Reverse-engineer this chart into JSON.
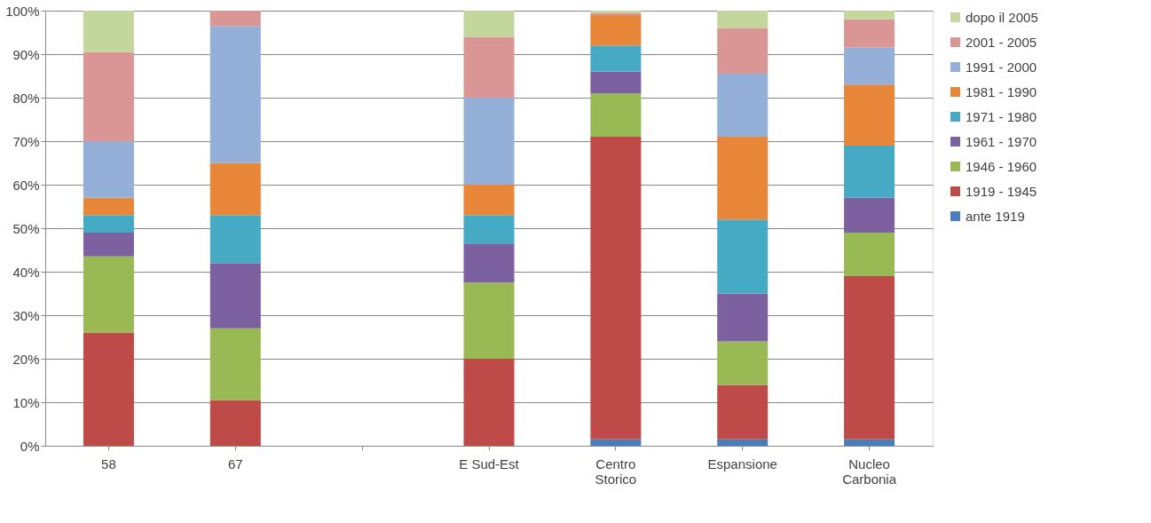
{
  "chart_data": {
    "type": "bar",
    "stacked": true,
    "categories": [
      "58",
      "67",
      null,
      "E Sud-Est",
      "Centro Storico",
      "Espansione",
      "Nucleo Carbonia"
    ],
    "series": [
      {
        "name": "ante 1919",
        "color": "#4a7ebb",
        "values": [
          0,
          0,
          null,
          0,
          1.5,
          1.5,
          1.5
        ]
      },
      {
        "name": "1919 - 1945",
        "color": "#be4b48",
        "values": [
          26,
          10.5,
          null,
          20,
          69.5,
          12.5,
          37.5
        ]
      },
      {
        "name": "1946 - 1960",
        "color": "#98b954",
        "values": [
          17.5,
          16.5,
          null,
          17.5,
          10,
          10,
          10
        ]
      },
      {
        "name": "1961 - 1970",
        "color": "#7d60a0",
        "values": [
          5.5,
          15,
          null,
          9,
          5,
          11,
          8
        ]
      },
      {
        "name": "1971 - 1980",
        "color": "#46aac5",
        "values": [
          4,
          11,
          null,
          6.5,
          6,
          17,
          12
        ]
      },
      {
        "name": "1981 - 1990",
        "color": "#e8873a",
        "values": [
          4,
          12,
          null,
          7,
          7,
          19,
          14
        ]
      },
      {
        "name": "1991 - 2000",
        "color": "#94afd8",
        "values": [
          13,
          31.5,
          null,
          20,
          0,
          14.5,
          8.5
        ]
      },
      {
        "name": "2001 - 2005",
        "color": "#d99694",
        "values": [
          20.5,
          3.5,
          null,
          14,
          0.5,
          10.5,
          6.5
        ]
      },
      {
        "name": "dopo il 2005",
        "color": "#c3d69b",
        "values": [
          9.5,
          0,
          null,
          6,
          0.5,
          4,
          2
        ]
      }
    ],
    "ylim": [
      0,
      100
    ],
    "yticks": [
      {
        "value": 0,
        "label": "0%"
      },
      {
        "value": 10,
        "label": "10%"
      },
      {
        "value": 20,
        "label": "20%"
      },
      {
        "value": 30,
        "label": "30%"
      },
      {
        "value": 40,
        "label": "40%"
      },
      {
        "value": 50,
        "label": "50%"
      },
      {
        "value": 60,
        "label": "60%"
      },
      {
        "value": 70,
        "label": "70%"
      },
      {
        "value": 80,
        "label": "80%"
      },
      {
        "value": 90,
        "label": "90%"
      },
      {
        "value": 100,
        "label": "100%"
      }
    ],
    "grid": "y",
    "legend": "right"
  }
}
